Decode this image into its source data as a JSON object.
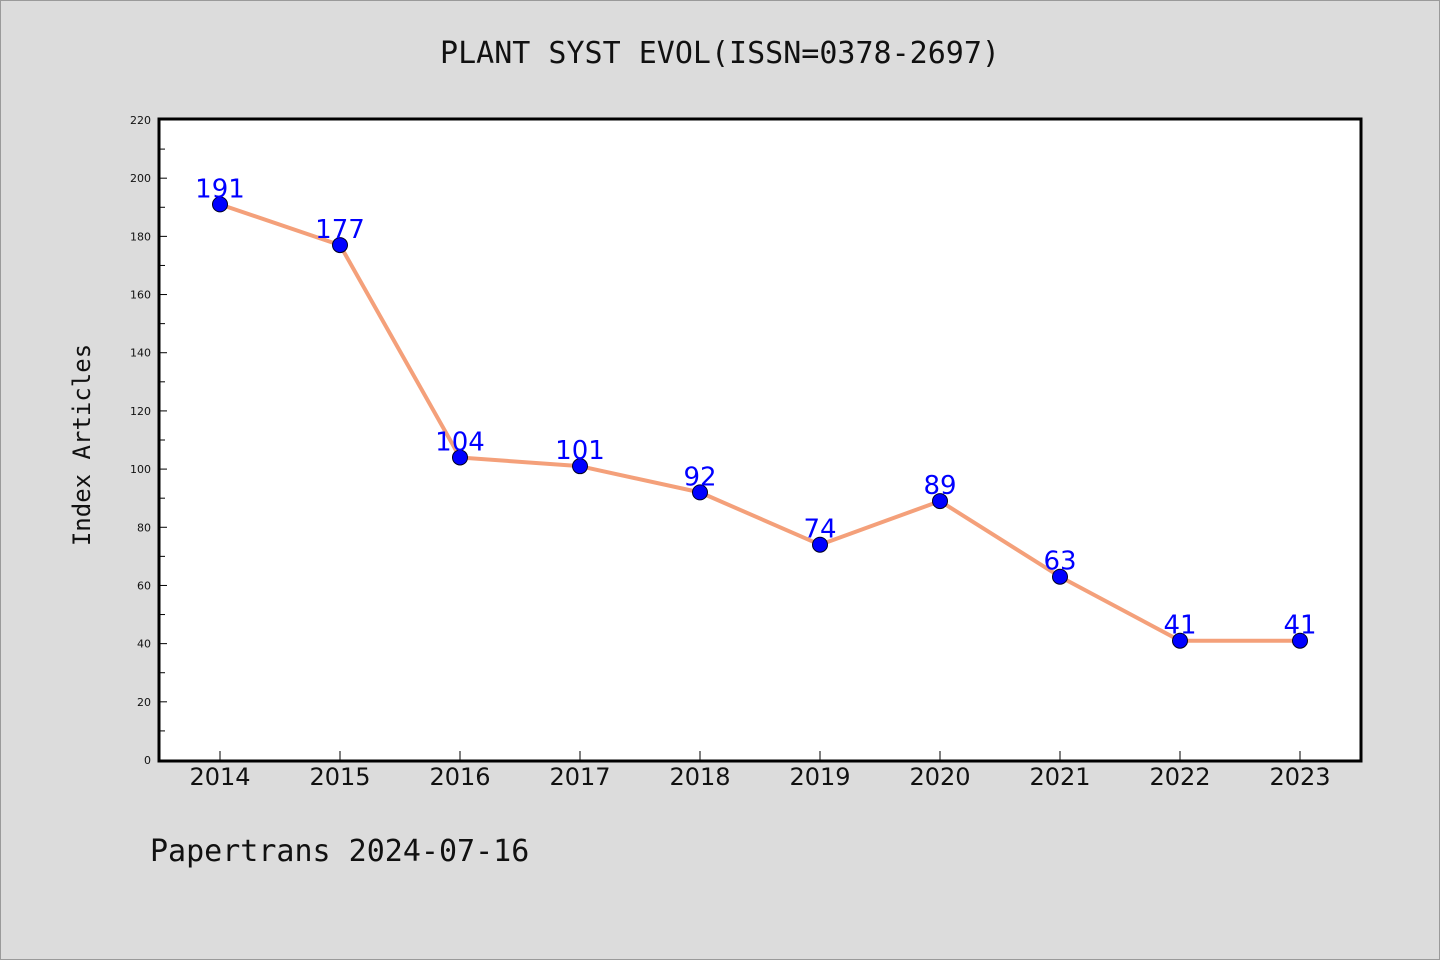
{
  "header": {
    "title": "PLANT SYST EVOL(ISSN=0378-2697)"
  },
  "footer": {
    "text": "Papertrans 2024-07-16"
  },
  "colors": {
    "background": "#dcdcdc",
    "plot_background": "#ffffff",
    "line": "#f4a07a",
    "marker": "#0000ff",
    "data_label": "#0000ff"
  },
  "chart_data": {
    "type": "line",
    "title": "PLANT SYST EVOL(ISSN=0378-2697)",
    "xlabel": "",
    "ylabel": "Index Articles",
    "categories": [
      "2014",
      "2015",
      "2016",
      "2017",
      "2018",
      "2019",
      "2020",
      "2021",
      "2022",
      "2023"
    ],
    "values": [
      191,
      177,
      104,
      101,
      92,
      74,
      89,
      63,
      41,
      41
    ],
    "data_labels": [
      "191",
      "177",
      "104",
      "101",
      "92",
      "74",
      "89",
      "63",
      "41",
      "41"
    ],
    "ylim": [
      0,
      220
    ],
    "yticks": [
      0,
      20,
      40,
      60,
      80,
      100,
      120,
      140,
      160,
      180,
      200,
      220
    ],
    "ytick_labels": [
      "0",
      "20",
      "40",
      "60",
      "80",
      "100",
      "120",
      "140",
      "160",
      "180",
      "200",
      "220"
    ],
    "grid": false,
    "legend": "none"
  }
}
